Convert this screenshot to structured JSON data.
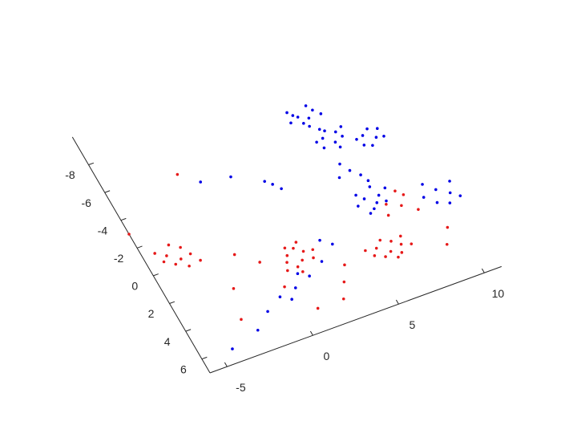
{
  "chart_data": {
    "type": "scatter",
    "xlim": [
      -6,
      11
    ],
    "xticks": [
      -5,
      0,
      5,
      10
    ],
    "ylim": [
      -10,
      7
    ],
    "yticks": [
      -8,
      -6,
      -4,
      -2,
      0,
      2,
      4,
      6
    ],
    "series": [
      {
        "color": "#0000e6",
        "x": [
          5.2,
          5.9,
          6.3,
          5.5,
          4.9,
          6.1,
          5.7,
          5.0,
          6.6,
          5.4,
          6.0,
          6.5,
          6.8,
          5.8,
          6.3,
          7.0,
          5.6,
          6.6,
          6.1,
          7.2,
          8.0,
          8.6,
          8.9,
          7.8,
          8.4,
          9.0,
          7.6,
          8.2,
          6.3,
          6.8,
          6.0,
          7.1,
          6.5,
          5.8,
          7.3,
          6.9,
          6.2,
          7.6,
          6.4,
          6.8,
          6.1,
          7.0,
          5.7,
          10.0,
          10.6,
          9.7,
          10.9,
          10.3,
          9.5,
          11.0,
          9.2,
          3.5,
          2.5,
          1.5,
          0.5,
          -0.5,
          -1.5,
          0.0,
          1.0,
          3.0,
          -2.5,
          -1.1,
          0.5,
          -4.25,
          2.3,
          2.6,
          2.0
        ],
        "values": [
          -6.5,
          -6.0,
          -6.4,
          -5.8,
          -6.1,
          -6.8,
          -5.5,
          -6.8,
          -6.0,
          -6.3,
          -4.5,
          -4.0,
          -4.6,
          -3.9,
          -4.9,
          -4.2,
          -4.4,
          -3.6,
          -5.1,
          -4.8,
          -3.8,
          -3.4,
          -3.9,
          -3.2,
          -4.1,
          -3.3,
          -3.7,
          -3.0,
          0.0,
          0.5,
          -0.4,
          0.1,
          0.8,
          0.3,
          0.6,
          -0.6,
          1.0,
          -0.2,
          -2.0,
          -1.5,
          -2.6,
          -1.0,
          -1.8,
          1.0,
          1.5,
          1.8,
          0.8,
          2.1,
          0.4,
          1.9,
          1.2,
          2.0,
          2.8,
          3.4,
          3.8,
          4.0,
          4.6,
          4.4,
          3.0,
          1.5,
          5.5,
          -4.55,
          -4.2,
          6.06,
          -2.85,
          -2.4,
          -3.2
        ]
      },
      {
        "color": "#e61919",
        "x": [
          1.0,
          1.6,
          1.9,
          1.2,
          0.8,
          1.5,
          2.2,
          1.3,
          0.6,
          1.8,
          2.4,
          1.1,
          5.5,
          6.1,
          6.4,
          5.7,
          6.8,
          5.2,
          6.3,
          7.0,
          5.9,
          4.9,
          6.6,
          7.3,
          -4.8,
          -4.2,
          -3.9,
          -4.6,
          -5.1,
          -3.6,
          -4.0,
          -5.3,
          -4.4,
          -3.3,
          7.2,
          7.9,
          8.3,
          7.0,
          8.6,
          8.0,
          -1.5,
          -0.5,
          -2.5,
          0.0,
          -3.0,
          3.5,
          3.0,
          2.5,
          9.5,
          9.0,
          -6.0,
          -2.0,
          1.0
        ],
        "values": [
          1.7,
          2.3,
          1.8,
          2.6,
          2.1,
          1.4,
          2.4,
          3.0,
          2.6,
          1.1,
          1.9,
          1.2,
          3.2,
          3.7,
          3.1,
          3.9,
          3.5,
          3.6,
          4.2,
          3.0,
          2.8,
          3.1,
          4.0,
          3.7,
          -0.9,
          -0.4,
          -1.1,
          -0.2,
          -0.6,
          -0.5,
          0.2,
          -1.3,
          -1.5,
          0.1,
          0.8,
          1.2,
          0.6,
          1.5,
          1.8,
          0.2,
          0.5,
          1.5,
          2.5,
          3.5,
          4.5,
          3.5,
          4.5,
          5.5,
          3.5,
          4.5,
          -3.0,
          -5.5,
          5.5
        ]
      }
    ]
  }
}
